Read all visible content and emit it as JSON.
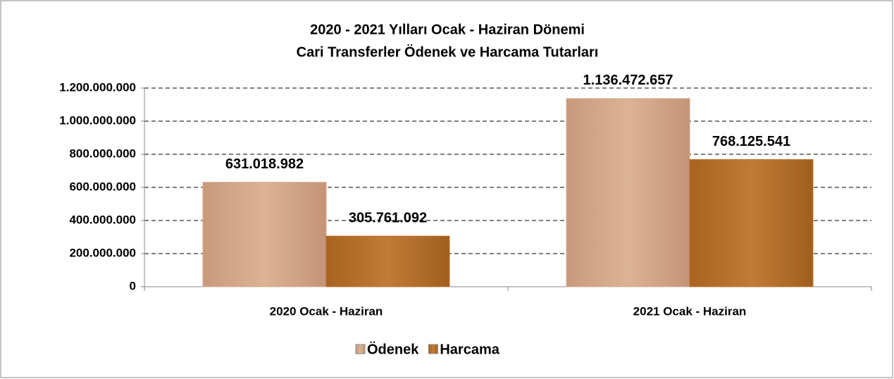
{
  "chart_data": {
    "type": "bar",
    "title": [
      "2020 - 2021 Yılları Ocak - Haziran Dönemi",
      "Cari Transferler Ödenek ve Harcama Tutarları"
    ],
    "categories": [
      "2020 Ocak - Haziran",
      "2021 Ocak - Haziran"
    ],
    "series": [
      {
        "name": "Ödenek",
        "color": "#d4a98a",
        "values": [
          631018982,
          1136472657
        ],
        "value_labels": [
          "631.018.982",
          "1.136.472.657"
        ]
      },
      {
        "name": "Harcama",
        "color": "#b8722f",
        "values": [
          305761092,
          768125541
        ],
        "value_labels": [
          "305.761.092",
          "768.125.541"
        ]
      }
    ],
    "ylim": [
      0,
      1200000000
    ],
    "yticks": [
      0,
      {
        "value": 200000000,
        "label": "200.000.000"
      },
      {
        "value": 400000000,
        "label": "400.000.000"
      },
      {
        "value": 600000000,
        "label": "600.000.000"
      },
      {
        "value": 800000000,
        "label": "800.000.000"
      },
      {
        "value": 1000000000,
        "label": "1.000.000.000"
      },
      {
        "value": 1200000000,
        "label": "1.200.000.000"
      }
    ],
    "grid": true,
    "legend": "bottom"
  }
}
